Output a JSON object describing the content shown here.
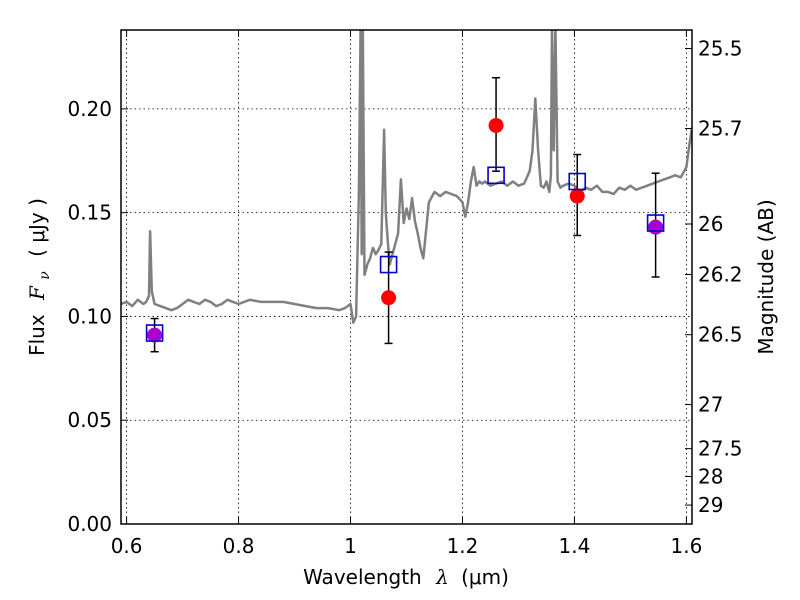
{
  "chart_data": {
    "type": "scatter",
    "xlabel": "Wavelength",
    "xlabel_symbol": "λ",
    "xlabel_unit": "(μm)",
    "ylabel": "Flux",
    "ylabel_symbol": "F",
    "ylabel_subscript": "ν",
    "ylabel_unit": "( μJy )",
    "y2label": "Magnitude (AB)",
    "xlim": [
      0.59,
      1.61
    ],
    "ylim": [
      0.0,
      0.238
    ],
    "x_ticks": [
      0.6,
      0.8,
      1.0,
      1.2,
      1.4,
      1.6
    ],
    "x_tick_labels": [
      "0.6",
      "0.8",
      "1",
      "1.2",
      "1.4",
      "1.6"
    ],
    "y_ticks": [
      0.0,
      0.05,
      0.1,
      0.15,
      0.2
    ],
    "y_tick_labels": [
      "0.00",
      "0.05",
      "0.10",
      "0.15",
      "0.20"
    ],
    "y2_ticks": [
      25.5,
      25.7,
      26,
      26.2,
      26.5,
      27,
      27.5,
      28,
      29
    ],
    "y2_tick_labels": [
      "25.5",
      "25.7",
      "26",
      "26.2",
      "26.5",
      "27",
      "27.5",
      "28",
      "29"
    ],
    "grid": true,
    "colors": {
      "spectrum": "#808080",
      "observed": "#ff0000",
      "model": "#0000cc",
      "overlap": "#aa00cc",
      "errorbar": "#000000"
    },
    "spectrum": {
      "x": [
        0.59,
        0.6,
        0.61,
        0.62,
        0.63,
        0.635,
        0.64,
        0.642,
        0.645,
        0.65,
        0.66,
        0.67,
        0.68,
        0.69,
        0.7,
        0.71,
        0.72,
        0.73,
        0.74,
        0.75,
        0.76,
        0.77,
        0.78,
        0.79,
        0.8,
        0.82,
        0.84,
        0.86,
        0.88,
        0.9,
        0.92,
        0.94,
        0.96,
        0.98,
        0.99,
        1.0,
        1.005,
        1.01,
        1.015,
        1.018,
        1.02,
        1.022,
        1.025,
        1.03,
        1.035,
        1.04,
        1.045,
        1.05,
        1.055,
        1.06,
        1.063,
        1.066,
        1.07,
        1.075,
        1.08,
        1.085,
        1.09,
        1.095,
        1.1,
        1.105,
        1.11,
        1.115,
        1.12,
        1.125,
        1.13,
        1.14,
        1.15,
        1.16,
        1.17,
        1.18,
        1.19,
        1.2,
        1.205,
        1.21,
        1.215,
        1.22,
        1.225,
        1.23,
        1.235,
        1.24,
        1.25,
        1.26,
        1.27,
        1.28,
        1.29,
        1.3,
        1.31,
        1.32,
        1.325,
        1.33,
        1.335,
        1.34,
        1.345,
        1.35,
        1.355,
        1.358,
        1.36,
        1.363,
        1.366,
        1.37,
        1.375,
        1.38,
        1.39,
        1.4,
        1.41,
        1.42,
        1.43,
        1.44,
        1.45,
        1.46,
        1.47,
        1.48,
        1.49,
        1.5,
        1.51,
        1.52,
        1.53,
        1.54,
        1.55,
        1.56,
        1.57,
        1.58,
        1.59,
        1.6,
        1.605,
        1.61
      ],
      "y": [
        0.106,
        0.107,
        0.105,
        0.108,
        0.106,
        0.107,
        0.11,
        0.141,
        0.112,
        0.106,
        0.105,
        0.104,
        0.103,
        0.104,
        0.106,
        0.108,
        0.107,
        0.106,
        0.108,
        0.107,
        0.105,
        0.106,
        0.108,
        0.107,
        0.106,
        0.108,
        0.107,
        0.107,
        0.107,
        0.106,
        0.105,
        0.104,
        0.104,
        0.103,
        0.104,
        0.106,
        0.097,
        0.1,
        0.16,
        0.24,
        0.13,
        0.24,
        0.12,
        0.125,
        0.128,
        0.133,
        0.13,
        0.132,
        0.135,
        0.19,
        0.15,
        0.138,
        0.125,
        0.13,
        0.135,
        0.14,
        0.166,
        0.145,
        0.152,
        0.147,
        0.157,
        0.146,
        0.14,
        0.133,
        0.128,
        0.155,
        0.16,
        0.158,
        0.16,
        0.159,
        0.158,
        0.155,
        0.148,
        0.155,
        0.165,
        0.172,
        0.163,
        0.165,
        0.164,
        0.165,
        0.163,
        0.164,
        0.165,
        0.163,
        0.165,
        0.163,
        0.164,
        0.17,
        0.18,
        0.205,
        0.18,
        0.163,
        0.162,
        0.165,
        0.16,
        0.168,
        0.24,
        0.18,
        0.24,
        0.165,
        0.162,
        0.163,
        0.164,
        0.163,
        0.16,
        0.162,
        0.161,
        0.163,
        0.16,
        0.16,
        0.159,
        0.162,
        0.161,
        0.163,
        0.161,
        0.162,
        0.163,
        0.164,
        0.165,
        0.166,
        0.167,
        0.168,
        0.167,
        0.172,
        0.182,
        0.191
      ]
    },
    "series": [
      {
        "marker": "circle",
        "x": [
          0.65,
          1.068,
          1.26,
          1.405,
          1.545
        ],
        "y": [
          0.091,
          0.109,
          0.192,
          0.158,
          0.143
        ],
        "yerr_low": [
          0.083,
          0.087,
          0.17,
          0.139,
          0.119
        ],
        "yerr_high": [
          0.099,
          0.131,
          0.215,
          0.178,
          0.169
        ]
      },
      {
        "marker": "square",
        "x": [
          0.65,
          1.068,
          1.26,
          1.405,
          1.545
        ],
        "y": [
          0.092,
          0.125,
          0.168,
          0.165,
          0.145
        ]
      }
    ]
  }
}
